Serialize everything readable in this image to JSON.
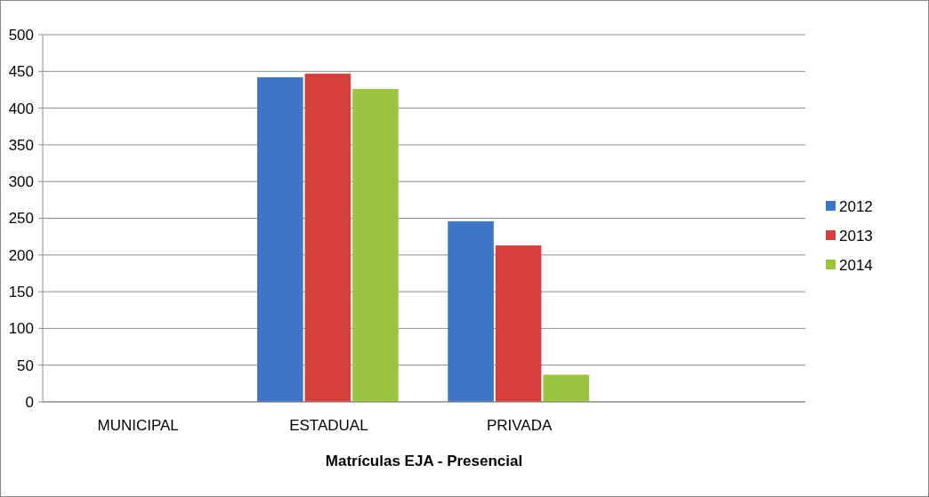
{
  "chart_data": {
    "type": "bar",
    "xlabel": "Matrículas EJA - Presencial",
    "categories": [
      "MUNICIPAL",
      "ESTADUAL",
      "PRIVADA",
      null
    ],
    "series": [
      {
        "name": "2012",
        "color": "#3f75c6",
        "values": [
          0,
          442,
          246,
          null
        ]
      },
      {
        "name": "2013",
        "color": "#d6403c",
        "values": [
          0,
          447,
          213,
          null
        ]
      },
      {
        "name": "2014",
        "color": "#9bc540",
        "values": [
          0,
          426,
          37,
          null
        ]
      }
    ],
    "ylim": [
      0,
      500
    ],
    "yticks": [
      0,
      50,
      100,
      150,
      200,
      250,
      300,
      350,
      400,
      450,
      500
    ],
    "grid": "y",
    "legend": "right"
  }
}
